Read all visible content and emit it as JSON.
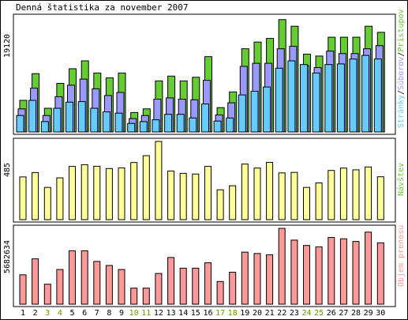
{
  "title": "Denná štatistika za november 2007",
  "colors": {
    "background": "#ffffff",
    "border": "#000000",
    "pages": "#66ccff",
    "files": "#9999ff",
    "hits": "#66cc33",
    "visits": "#ffff99",
    "bytes": "#ff9999",
    "weekday_label": "#000000",
    "weekend_label": "#669900"
  },
  "chart_data": [
    {
      "type": "bar",
      "panel": "hits",
      "legend": [
        "Stránky",
        "Súborov",
        "Prístupov"
      ],
      "legend_separator": "/",
      "ymax_label": "19120",
      "ylim": [
        0,
        19120
      ],
      "categories": [
        "1",
        "2",
        "3",
        "4",
        "5",
        "6",
        "7",
        "8",
        "9",
        "10",
        "11",
        "12",
        "13",
        "14",
        "15",
        "16",
        "17",
        "18",
        "19",
        "20",
        "21",
        "22",
        "23",
        "24",
        "25",
        "26",
        "27",
        "28",
        "29",
        "30"
      ],
      "weekend": [
        "3",
        "4",
        "10",
        "11",
        "17",
        "18",
        "24",
        "25"
      ],
      "series": [
        {
          "name": "Stránky",
          "values": [
            2700,
            5200,
            1700,
            3900,
            4900,
            5000,
            3900,
            3300,
            3100,
            1400,
            1700,
            2000,
            2900,
            2900,
            2300,
            4600,
            1800,
            2300,
            6100,
            6700,
            7400,
            10500,
            11700,
            11100,
            9700,
            11100,
            11200,
            12000,
            12600,
            12000
          ]
        },
        {
          "name": "Súborov",
          "values": [
            3800,
            7200,
            2700,
            5800,
            7700,
            8700,
            7100,
            6000,
            6500,
            2200,
            2700,
            5400,
            5600,
            5400,
            5300,
            8500,
            2800,
            4800,
            10800,
            11300,
            11300,
            13700,
            14100,
            10900,
            10600,
            13300,
            12900,
            12900,
            13700,
            14200
          ]
        },
        {
          "name": "Prístupov",
          "values": [
            5200,
            9600,
            3900,
            8000,
            10400,
            11700,
            9700,
            8900,
            9700,
            3200,
            3800,
            8400,
            9200,
            8400,
            9000,
            12400,
            4000,
            6600,
            13700,
            14800,
            15400,
            18500,
            17400,
            12800,
            12500,
            15600,
            15600,
            15600,
            17400,
            16400
          ]
        }
      ]
    },
    {
      "type": "bar",
      "panel": "visits",
      "legend": [
        "Návštev"
      ],
      "ymax_label": "485",
      "ylim": [
        0,
        485
      ],
      "series": [
        {
          "name": "Návštev",
          "values": [
            265,
            292,
            200,
            259,
            330,
            341,
            331,
            317,
            321,
            354,
            397,
            485,
            302,
            287,
            283,
            330,
            185,
            210,
            345,
            320,
            355,
            290,
            293,
            200,
            228,
            305,
            320,
            309,
            327,
            266
          ]
        }
      ]
    },
    {
      "type": "bar",
      "panel": "kbytes",
      "legend": [
        "Objem prenosu"
      ],
      "ymax_label": "5682634",
      "ylim": [
        0,
        5682634
      ],
      "series": [
        {
          "name": "Objem prenosu",
          "values": [
            2200000,
            3400000,
            1500000,
            2600000,
            4000000,
            4000000,
            3200000,
            2900000,
            2600000,
            1200000,
            1200000,
            2300000,
            3500000,
            2700000,
            2700000,
            3100000,
            1700000,
            2400000,
            3900000,
            3800000,
            3700000,
            5682634,
            4800000,
            4400000,
            4300000,
            5000000,
            4900000,
            4700000,
            5400000,
            4600000
          ]
        }
      ]
    }
  ]
}
